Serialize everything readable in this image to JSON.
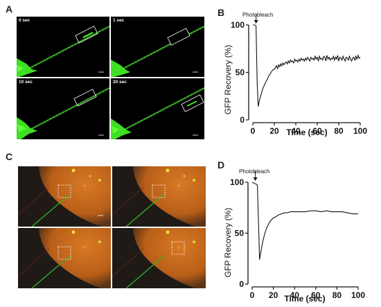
{
  "panels": {
    "A": {
      "letter": "A",
      "tiles": [
        {
          "label": "0 sec"
        },
        {
          "label": "1 sec"
        },
        {
          "label": "10 sec"
        },
        {
          "label": "20 sec"
        }
      ],
      "colors": {
        "background": "#000000",
        "signal": "#39e021",
        "box": "#ffffff"
      }
    },
    "B": {
      "letter": "B",
      "annotation": "Photobleach",
      "ylabel": "GFP Recovery (%)",
      "xlabel": "Time (sec)"
    },
    "C": {
      "letter": "C",
      "colors": {
        "cell": "#c46a1a",
        "background": "#1a1614",
        "fiber": "#2fb530",
        "box": "#ffffff"
      }
    },
    "D": {
      "letter": "D",
      "annotation": "Photobleach",
      "ylabel": "GFP Recovery (%)",
      "xlabel": "Time (sec)"
    }
  },
  "chart_data": [
    {
      "type": "line",
      "panel": "B",
      "xlabel": "Time (sec)",
      "ylabel": "GFP Recovery (%)",
      "xlim": [
        0,
        100
      ],
      "ylim": [
        0,
        100
      ],
      "xticks": [
        0,
        20,
        40,
        60,
        80,
        100
      ],
      "yticks": [
        0,
        50,
        100
      ],
      "annotation": "Photobleach",
      "annotation_x": 3,
      "grid": false,
      "x": [
        0,
        1,
        2,
        3,
        4,
        5,
        6,
        7,
        8,
        9,
        10,
        11,
        12,
        13,
        14,
        15,
        16,
        17,
        18,
        19,
        20,
        21,
        22,
        23,
        24,
        25,
        26,
        27,
        28,
        29,
        30,
        31,
        32,
        33,
        34,
        35,
        36,
        37,
        38,
        39,
        40,
        41,
        42,
        43,
        44,
        45,
        46,
        47,
        48,
        49,
        50,
        51,
        52,
        53,
        54,
        55,
        56,
        57,
        58,
        59,
        60,
        61,
        62,
        63,
        64,
        65,
        66,
        67,
        68,
        69,
        70,
        71,
        72,
        73,
        74,
        75,
        76,
        77,
        78,
        79,
        80,
        81,
        82,
        83,
        84,
        85,
        86,
        87,
        88,
        89,
        90,
        91,
        92,
        93,
        94,
        95,
        96,
        97,
        98,
        99,
        100
      ],
      "y": [
        100,
        100,
        100,
        99,
        40,
        14,
        20,
        24,
        28,
        32,
        35,
        37,
        40,
        42,
        44,
        47,
        48,
        50,
        52,
        53,
        53,
        55,
        57,
        54,
        58,
        56,
        59,
        57,
        60,
        58,
        60,
        61,
        59,
        62,
        60,
        63,
        61,
        62,
        60,
        64,
        62,
        63,
        61,
        64,
        62,
        65,
        63,
        64,
        62,
        65,
        63,
        66,
        64,
        62,
        66,
        64,
        65,
        63,
        67,
        64,
        66,
        62,
        67,
        64,
        65,
        63,
        67,
        66,
        62,
        68,
        64,
        66,
        63,
        65,
        64,
        67,
        63,
        66,
        64,
        68,
        62,
        66,
        65,
        63,
        67,
        64,
        62,
        66,
        65,
        63,
        67,
        64,
        62,
        65,
        66,
        63,
        67,
        64,
        68,
        65,
        66
      ]
    },
    {
      "type": "line",
      "panel": "D",
      "xlabel": "Time (sec)",
      "ylabel": "GFP Recovery (%)",
      "xlim": [
        0,
        100
      ],
      "ylim": [
        0,
        100
      ],
      "xticks": [
        0,
        20,
        40,
        60,
        80,
        100
      ],
      "yticks": [
        0,
        50,
        100
      ],
      "annotation": "Photobleach",
      "annotation_x": 3,
      "grid": false,
      "x": [
        0,
        2,
        4,
        5,
        6,
        7,
        8,
        10,
        12,
        14,
        16,
        18,
        20,
        22,
        25,
        28,
        30,
        33,
        36,
        40,
        45,
        50,
        55,
        60,
        65,
        70,
        75,
        80,
        85,
        90,
        95,
        100
      ],
      "y": [
        100,
        99,
        98,
        97,
        60,
        24,
        30,
        42,
        50,
        56,
        60,
        63,
        65,
        66,
        68,
        69,
        70,
        70,
        71,
        71,
        71,
        71,
        72,
        72,
        71,
        72,
        71,
        71,
        71,
        70,
        69,
        69
      ]
    }
  ]
}
